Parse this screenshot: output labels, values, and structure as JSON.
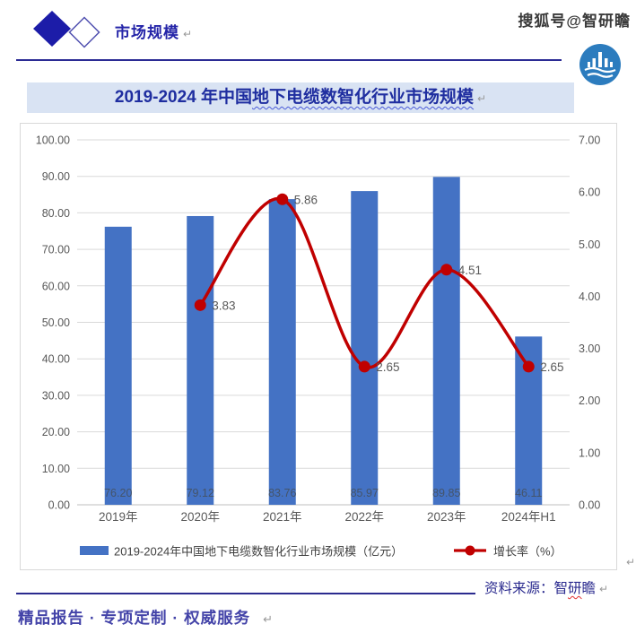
{
  "header": {
    "section_title": "市场规模",
    "watermark": "搜狐号@智研瞻",
    "return_mark": "↵"
  },
  "title_bar": {
    "prefix": "2019-2024 年中国",
    "wavy_text": "地下电缆数智化行业市场规模"
  },
  "chart_data": {
    "type": "bar",
    "subtype": "combo-bar-line",
    "title": "2019-2024 年中国地下电缆数智化行业市场规模",
    "categories": [
      "2019年",
      "2020年",
      "2021年",
      "2022年",
      "2023年",
      "2024年H1"
    ],
    "series": [
      {
        "name": "2019-2024年中国地下电缆数智化行业市场规模（亿元）",
        "type": "bar",
        "axis": "left",
        "color": "#4472C4",
        "values": [
          76.2,
          79.12,
          83.76,
          85.97,
          89.85,
          46.11
        ]
      },
      {
        "name": "增长率（%）",
        "type": "line",
        "axis": "right",
        "color": "#C00000",
        "values": [
          null,
          3.83,
          5.86,
          2.65,
          4.51,
          2.65
        ]
      }
    ],
    "left_axis": {
      "min": 0,
      "max": 100,
      "step": 10
    },
    "right_axis": {
      "min": 0,
      "max": 7,
      "step": 1
    },
    "decimals": 2,
    "grid": true,
    "legend_position": "bottom",
    "colors": {
      "grid": "#D9D9D9",
      "baseline": "#BFBFBF",
      "axis_text": "#595959",
      "bar_label": "#44546A",
      "point_label": "#595959",
      "legend_text": "#404040"
    }
  },
  "source": {
    "prefix": "资料来源：智",
    "wavy": "研",
    "tail": "瞻"
  },
  "footer": {
    "text": "精品报告 · 专项定制 · 权威服务"
  }
}
